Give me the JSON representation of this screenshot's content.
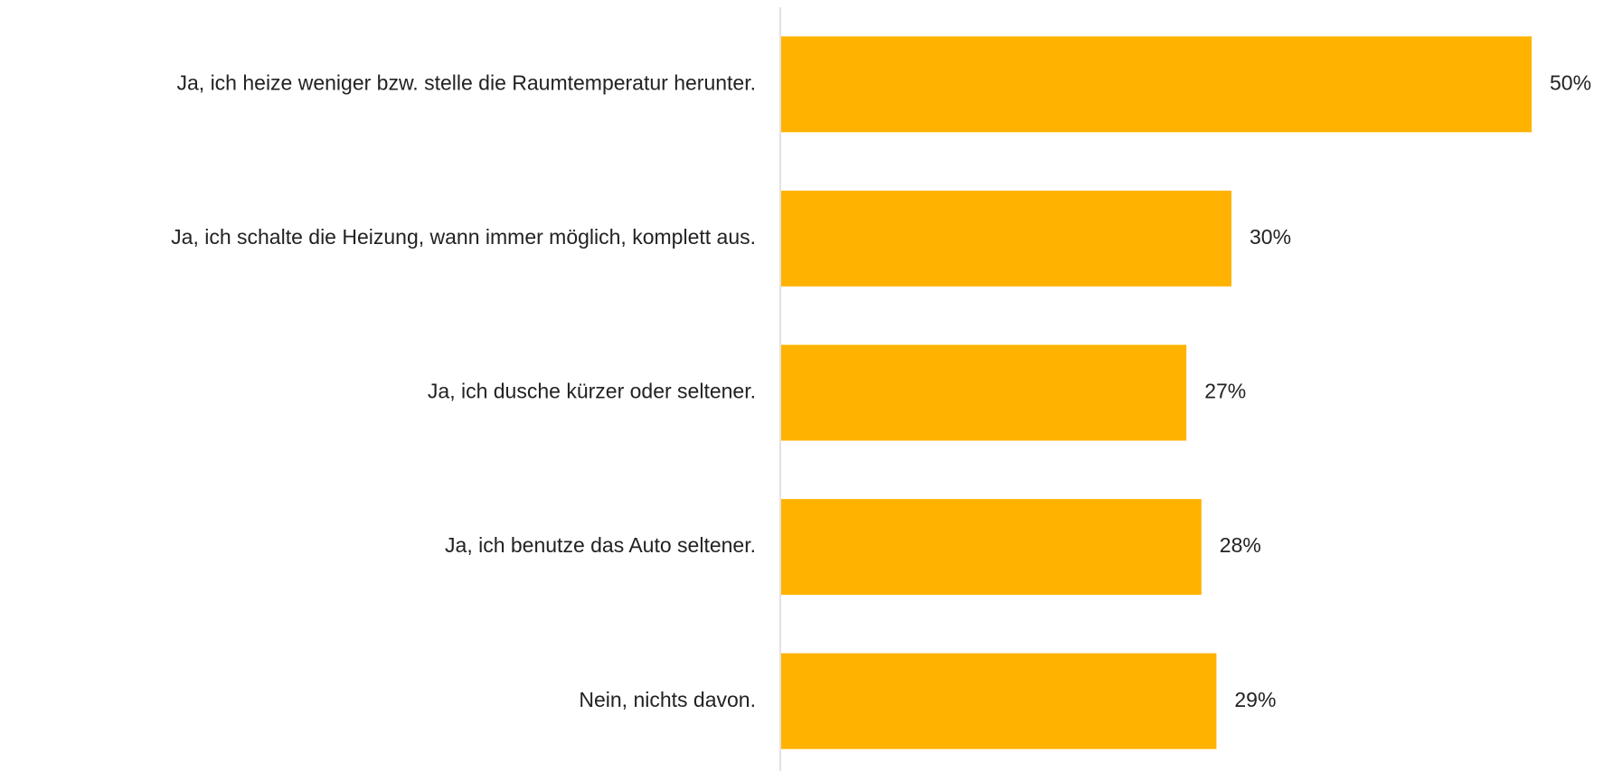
{
  "chart_data": {
    "type": "hbar",
    "categories": [
      "Ja, ich heize weniger bzw. stelle die Raumtemperatur herunter.",
      "Ja, ich schalte die Heizung, wann immer möglich, komplett aus.",
      "Ja, ich dusche kürzer oder seltener.",
      "Ja, ich benutze das Auto seltener.",
      "Nein, nichts davon."
    ],
    "values": [
      50,
      30,
      27,
      28,
      29
    ],
    "value_labels": [
      "50%",
      "30%",
      "27%",
      "28%",
      "29%"
    ],
    "color": "#ffb300"
  }
}
